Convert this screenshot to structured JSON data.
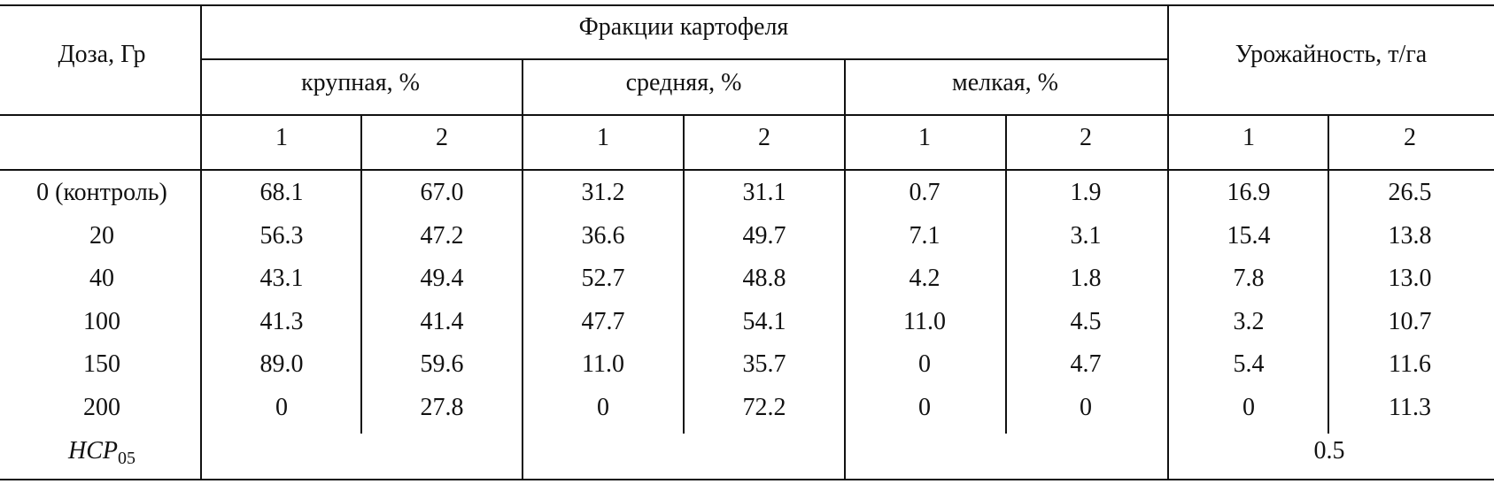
{
  "table": {
    "header": {
      "dose": "Доза, Гр",
      "fractions": "Фракции картофеля",
      "yield": "Урожайность, т/га",
      "large": "крупная, %",
      "medium": "средняя, %",
      "small": "мелкая, %",
      "col_1": "1",
      "col_2": "2"
    },
    "rows": [
      {
        "dose": "0 (контроль)",
        "values": [
          "68.1",
          "67.0",
          "31.2",
          "31.1",
          "0.7",
          "1.9",
          "16.9",
          "26.5"
        ]
      },
      {
        "dose": "20",
        "values": [
          "56.3",
          "47.2",
          "36.6",
          "49.7",
          "7.1",
          "3.1",
          "15.4",
          "13.8"
        ]
      },
      {
        "dose": "40",
        "values": [
          "43.1",
          "49.4",
          "52.7",
          "48.8",
          "4.2",
          "1.8",
          "7.8",
          "13.0"
        ]
      },
      {
        "dose": "100",
        "values": [
          "41.3",
          "41.4",
          "47.7",
          "54.1",
          "11.0",
          "4.5",
          "3.2",
          "10.7"
        ]
      },
      {
        "dose": "150",
        "values": [
          "89.0",
          "59.6",
          "11.0",
          "35.7",
          "0",
          "4.7",
          "5.4",
          "11.6"
        ]
      },
      {
        "dose": "200",
        "values": [
          "0",
          "27.8",
          "0",
          "72.2",
          "0",
          "0",
          "0",
          "11.3"
        ]
      }
    ],
    "lsd": {
      "label_main": "НСР",
      "label_sub": "05",
      "yield_value": "0.5"
    }
  }
}
